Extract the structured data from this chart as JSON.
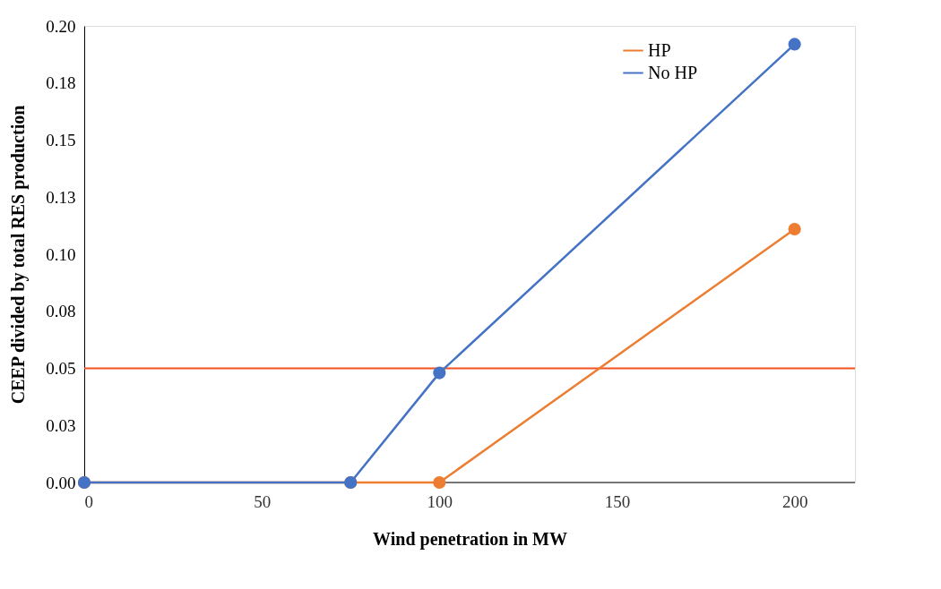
{
  "chart_data": {
    "type": "line",
    "xlabel": "Wind penetration in MW",
    "ylabel": "CEEP divided by total RES production",
    "x": [
      0,
      75,
      100,
      200
    ],
    "series": [
      {
        "name": "HP",
        "color": "#ed7d31",
        "values": [
          0,
          0,
          0,
          0.111
        ]
      },
      {
        "name": "No HP",
        "color": "#4472c4",
        "values": [
          0,
          0,
          0.048,
          0.192
        ]
      }
    ],
    "xlim": [
      0,
      217
    ],
    "xticks": [
      0,
      50,
      100,
      150,
      200
    ],
    "ylim": [
      0,
      0.2
    ],
    "yticks": [
      {
        "value": 0,
        "label": "0.00"
      },
      {
        "value": 0.025,
        "label": "0.03"
      },
      {
        "value": 0.05,
        "label": "0.05"
      },
      {
        "value": 0.075,
        "label": "0.08"
      },
      {
        "value": 0.1,
        "label": "0.10"
      },
      {
        "value": 0.125,
        "label": "0.13"
      },
      {
        "value": 0.15,
        "label": "0.15"
      },
      {
        "value": 0.175,
        "label": "0.18"
      },
      {
        "value": 0.2,
        "label": "0.20"
      }
    ],
    "ref_lines": [
      {
        "axis": "y",
        "value": 0.05,
        "color": "#f4511e"
      }
    ],
    "marker": "circle",
    "line_style": "solid",
    "grid": false,
    "legend": "top right"
  }
}
